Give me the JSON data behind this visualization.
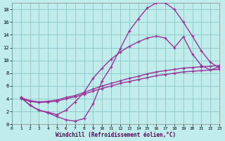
{
  "xlabel": "Windchill (Refroidissement éolien,°C)",
  "bg_color": "#c0ecec",
  "grid_color": "#90cccc",
  "line_color": "#993399",
  "xlim": [
    0,
    23
  ],
  "ylim": [
    0,
    19
  ],
  "xticks": [
    0,
    1,
    2,
    3,
    4,
    5,
    6,
    7,
    8,
    9,
    10,
    11,
    12,
    13,
    14,
    15,
    16,
    17,
    18,
    19,
    20,
    21,
    22,
    23
  ],
  "yticks": [
    0,
    2,
    4,
    6,
    8,
    10,
    12,
    14,
    16,
    18
  ],
  "curve1_x": [
    1,
    2,
    3,
    4,
    5,
    6,
    7,
    8,
    9,
    10,
    11,
    12,
    13,
    14,
    15,
    16,
    17,
    18,
    19,
    20,
    21,
    22,
    23
  ],
  "curve1_y": [
    4.2,
    3.0,
    2.2,
    1.8,
    1.2,
    0.7,
    0.5,
    0.9,
    3.2,
    6.8,
    9.0,
    11.8,
    14.6,
    16.5,
    18.2,
    19.0,
    19.0,
    18.0,
    16.0,
    13.8,
    11.5,
    9.7,
    8.8
  ],
  "curve2_x": [
    1,
    2,
    3,
    4,
    5,
    6,
    7,
    8,
    9,
    10,
    11,
    12,
    13,
    14,
    15,
    16,
    17,
    18,
    19,
    20,
    21,
    22,
    23
  ],
  "curve2_y": [
    4.2,
    3.0,
    2.2,
    1.9,
    1.5,
    2.2,
    3.5,
    5.0,
    7.2,
    8.8,
    10.2,
    11.3,
    12.2,
    12.9,
    13.5,
    13.8,
    13.5,
    12.0,
    13.7,
    11.0,
    9.2,
    8.5,
    9.0
  ],
  "curve3_x": [
    1,
    2,
    3,
    4,
    5,
    6,
    7,
    8,
    9,
    10,
    11,
    12,
    13,
    14,
    15,
    16,
    17,
    18,
    19,
    20,
    21,
    22,
    23
  ],
  "curve3_y": [
    4.2,
    3.7,
    3.5,
    3.6,
    3.8,
    4.2,
    4.5,
    5.0,
    5.5,
    6.0,
    6.4,
    6.8,
    7.2,
    7.5,
    7.9,
    8.2,
    8.4,
    8.6,
    8.8,
    8.9,
    9.0,
    9.1,
    9.2
  ],
  "curve4_x": [
    1,
    2,
    3,
    4,
    5,
    6,
    7,
    8,
    9,
    10,
    11,
    12,
    13,
    14,
    15,
    16,
    17,
    18,
    19,
    20,
    21,
    22,
    23
  ],
  "curve4_y": [
    4.0,
    3.6,
    3.4,
    3.5,
    3.6,
    4.0,
    4.3,
    4.7,
    5.2,
    5.6,
    6.0,
    6.4,
    6.7,
    7.0,
    7.3,
    7.6,
    7.8,
    8.0,
    8.2,
    8.3,
    8.4,
    8.5,
    8.6
  ]
}
